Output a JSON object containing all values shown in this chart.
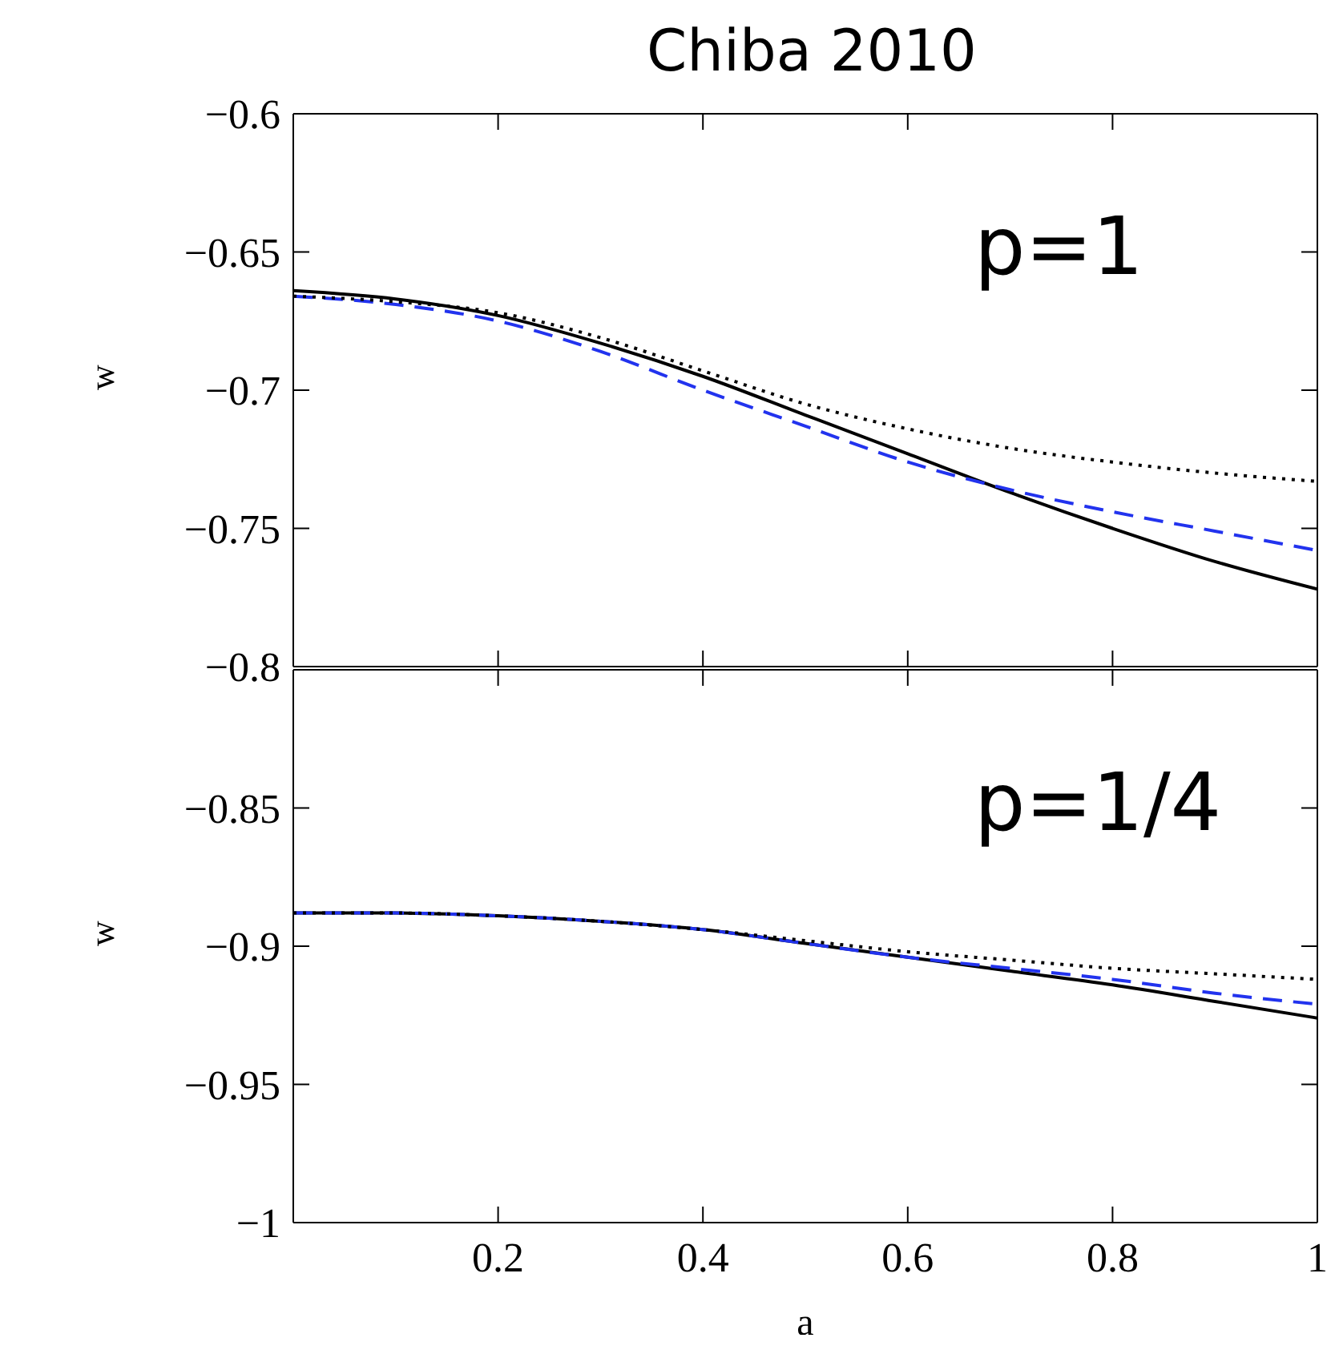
{
  "chart_data": [
    {
      "type": "line",
      "title": "Chiba 2010",
      "ylabel": "w",
      "annotations": [
        "p=1"
      ],
      "x": [
        0,
        0.1,
        0.2,
        0.3,
        0.4,
        0.5,
        0.6,
        0.7,
        0.8,
        0.9,
        1
      ],
      "xlim": [
        0,
        1
      ],
      "xticks": [
        0.2,
        0.4,
        0.6,
        0.8,
        1
      ],
      "ylim": [
        -0.8,
        -0.6
      ],
      "yticks": [
        -0.6,
        -0.65,
        -0.7,
        -0.75,
        -0.8
      ],
      "tick_labels": "y",
      "marker": "none",
      "series": [
        {
          "color": "#000000",
          "line_style": "solid",
          "values": [
            -0.664,
            -0.667,
            -0.673,
            -0.683,
            -0.695,
            -0.709,
            -0.723,
            -0.737,
            -0.75,
            -0.762,
            -0.772
          ]
        },
        {
          "color": "#2233ee",
          "line_style": "dashed",
          "values": [
            -0.666,
            -0.669,
            -0.675,
            -0.686,
            -0.7,
            -0.713,
            -0.726,
            -0.736,
            -0.744,
            -0.751,
            -0.758
          ]
        },
        {
          "color": "#000000",
          "line_style": "dotted",
          "values": [
            -0.666,
            -0.668,
            -0.672,
            -0.681,
            -0.693,
            -0.705,
            -0.714,
            -0.721,
            -0.726,
            -0.73,
            -0.733
          ]
        }
      ]
    },
    {
      "type": "line",
      "xlabel": "a",
      "ylabel": "w",
      "annotations": [
        "p=1/4"
      ],
      "x": [
        0,
        0.1,
        0.2,
        0.3,
        0.4,
        0.5,
        0.6,
        0.7,
        0.8,
        0.9,
        1
      ],
      "xlim": [
        0,
        1
      ],
      "xticks": [
        0.2,
        0.4,
        0.6,
        0.8,
        1
      ],
      "ylim": [
        -1,
        -0.8
      ],
      "yticks": [
        -0.85,
        -0.9,
        -0.95,
        -1
      ],
      "marker": "none",
      "series": [
        {
          "color": "#000000",
          "line_style": "solid",
          "values": [
            -0.888,
            -0.888,
            -0.889,
            -0.891,
            -0.894,
            -0.899,
            -0.904,
            -0.909,
            -0.914,
            -0.92,
            -0.926
          ]
        },
        {
          "color": "#2233ee",
          "line_style": "dashed",
          "values": [
            -0.888,
            -0.888,
            -0.889,
            -0.891,
            -0.894,
            -0.899,
            -0.904,
            -0.908,
            -0.912,
            -0.917,
            -0.921
          ]
        },
        {
          "color": "#000000",
          "line_style": "dotted",
          "values": [
            -0.888,
            -0.888,
            -0.889,
            -0.891,
            -0.894,
            -0.898,
            -0.902,
            -0.905,
            -0.908,
            -0.91,
            -0.912
          ]
        }
      ]
    }
  ]
}
